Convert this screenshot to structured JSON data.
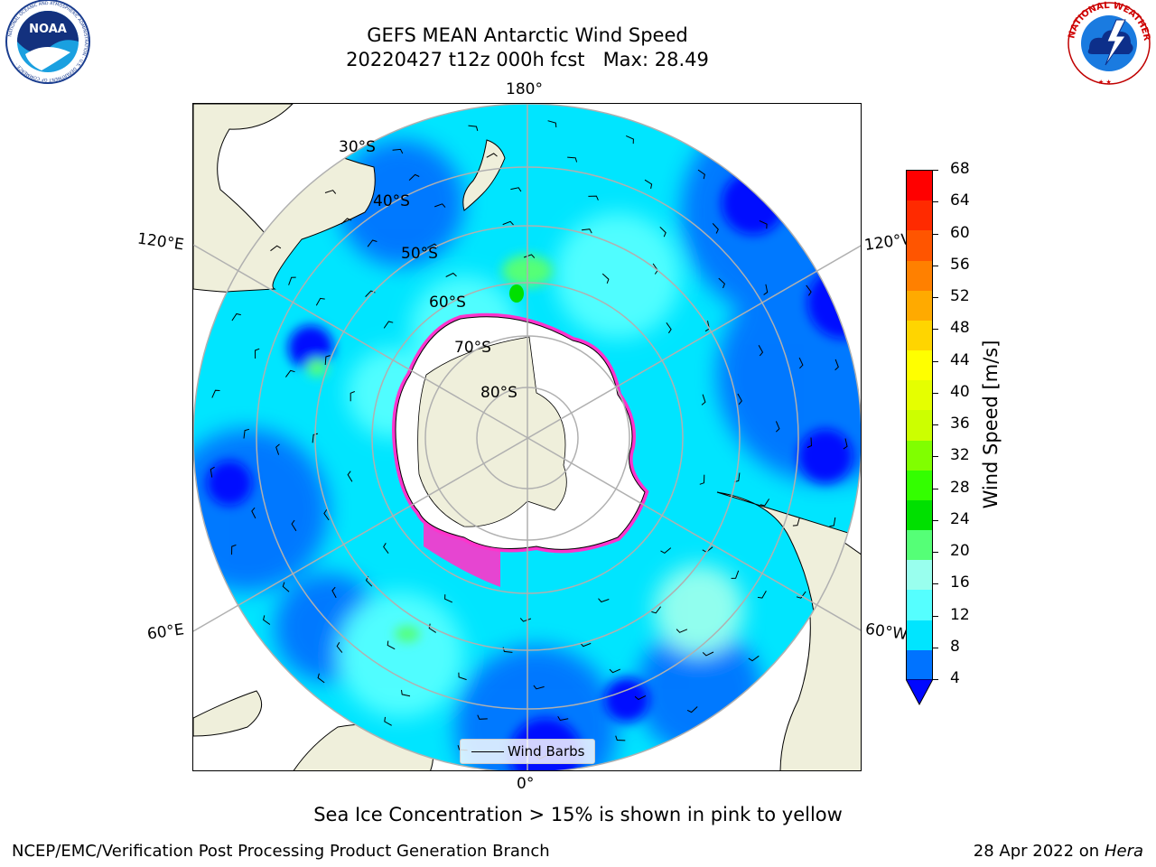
{
  "title": {
    "line1": "GEFS MEAN Antarctic Wind Speed",
    "line2": "20220427 t12z 000h fcst   Max: 28.49"
  },
  "subtitle": "Sea Ice Concentration > 15% is shown in pink to yellow",
  "footer": {
    "left": "NCEP/EMC/Verification Post Processing Product Generation Branch",
    "right_date": "28 Apr 2022 on",
    "right_host": "Hera"
  },
  "logos": {
    "noaa_text": "NOAA",
    "noaa_ring": "NATIONAL OCEANIC AND ATMOSPHERIC ADMINISTRATION · U.S. DEPARTMENT OF COMMERCE ·",
    "nws_ring": "NATIONAL WEATHER SERVICE"
  },
  "map": {
    "longitude_labels": {
      "top": "180°",
      "bottom": "0°",
      "upper_left": "120°E",
      "upper_right": "120°W",
      "lower_left": "60°E",
      "lower_right": "60°W"
    },
    "latitude_labels": [
      "30°S",
      "40°S",
      "50°S",
      "60°S",
      "70°S",
      "80°S"
    ],
    "legend_label": "Wind Barbs",
    "colors": {
      "ocean_low": "#00e5ff",
      "ocean_mid": "#0073ff",
      "ocean_high": "#0008ff",
      "land": "#efefdb",
      "ice": "#ffffff",
      "sea_ice": "#ff33cc"
    }
  },
  "colorbar": {
    "label": "Wind Speed [m/s]",
    "ticks": [
      "68",
      "64",
      "60",
      "56",
      "52",
      "48",
      "44",
      "40",
      "36",
      "32",
      "28",
      "24",
      "20",
      "16",
      "12",
      "8",
      "4"
    ],
    "bands_top_to_bottom": [
      "#ff0000",
      "#ff2a00",
      "#ff5500",
      "#ff8000",
      "#ffaa00",
      "#ffd500",
      "#ffff00",
      "#e5ff00",
      "#ccff00",
      "#80ff00",
      "#33ff00",
      "#00e000",
      "#55ff77",
      "#99ffee",
      "#55ffff",
      "#00e5ff",
      "#0073ff"
    ],
    "extend_color": "#0008ff"
  }
}
